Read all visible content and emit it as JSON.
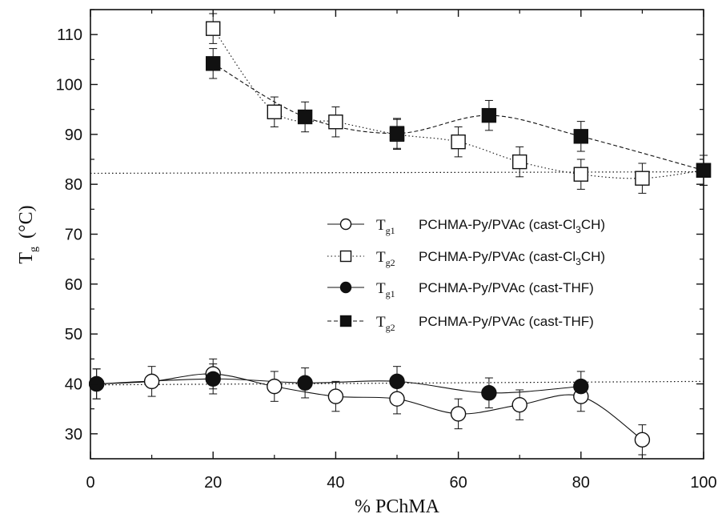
{
  "chart_data": {
    "type": "scatter",
    "xlabel": "% PChMA",
    "ylabel_main": "T",
    "ylabel_sub": "g",
    "ylabel_unit": "(°C)",
    "xlim": [
      0,
      100
    ],
    "ylim": [
      25,
      115
    ],
    "xticks": [
      0,
      20,
      40,
      60,
      80,
      100
    ],
    "yticks": [
      30,
      40,
      50,
      60,
      70,
      80,
      90,
      100,
      110
    ],
    "grid": false,
    "legend_position": "center-right",
    "reference_lines": [
      {
        "style": "dotted",
        "x": [
          0,
          100
        ],
        "y": [
          82.2,
          82.5
        ]
      },
      {
        "style": "dotted",
        "x": [
          0,
          100
        ],
        "y": [
          39.8,
          40.5
        ]
      }
    ],
    "series": [
      {
        "symbol_main": "T",
        "symbol_sub": "g1",
        "label": "PCHMA-Py/PVAc (cast-Cl",
        "label_sub": "3",
        "label_end": "CH)",
        "marker": "circle-open",
        "line": "solid",
        "x": [
          1,
          10,
          20,
          30,
          40,
          50,
          60,
          70,
          80,
          90
        ],
        "y": [
          40.0,
          40.5,
          42.0,
          39.5,
          37.5,
          37.0,
          34.0,
          35.8,
          37.5,
          28.8
        ],
        "err": 3
      },
      {
        "symbol_main": "T",
        "symbol_sub": "g2",
        "label": "PCHMA-Py/PVAc (cast-Cl",
        "label_sub": "3",
        "label_end": "CH)",
        "marker": "square-open",
        "line": "dotted",
        "x": [
          20,
          30,
          40,
          50,
          60,
          70,
          80,
          90,
          100
        ],
        "y": [
          111.2,
          94.5,
          92.5,
          90.0,
          88.5,
          84.5,
          82.0,
          81.2,
          82.8
        ],
        "err": 3
      },
      {
        "symbol_main": "T",
        "symbol_sub": "g1",
        "label": "PCHMA-Py/PVAc (cast-THF)",
        "label_sub": "",
        "label_end": "",
        "marker": "circle-filled",
        "line": "solid",
        "x": [
          1,
          20,
          35,
          50,
          65,
          80
        ],
        "y": [
          40.0,
          41.0,
          40.2,
          40.5,
          38.2,
          39.5
        ],
        "err": 3
      },
      {
        "symbol_main": "T",
        "symbol_sub": "g2",
        "label": "PCHMA-Py/PVAc (cast-THF)",
        "label_sub": "",
        "label_end": "",
        "marker": "square-filled",
        "line": "dashed",
        "x": [
          20,
          35,
          50,
          65,
          80,
          100
        ],
        "y": [
          104.2,
          93.5,
          90.2,
          93.8,
          89.6,
          82.8
        ],
        "err": 3
      }
    ]
  }
}
